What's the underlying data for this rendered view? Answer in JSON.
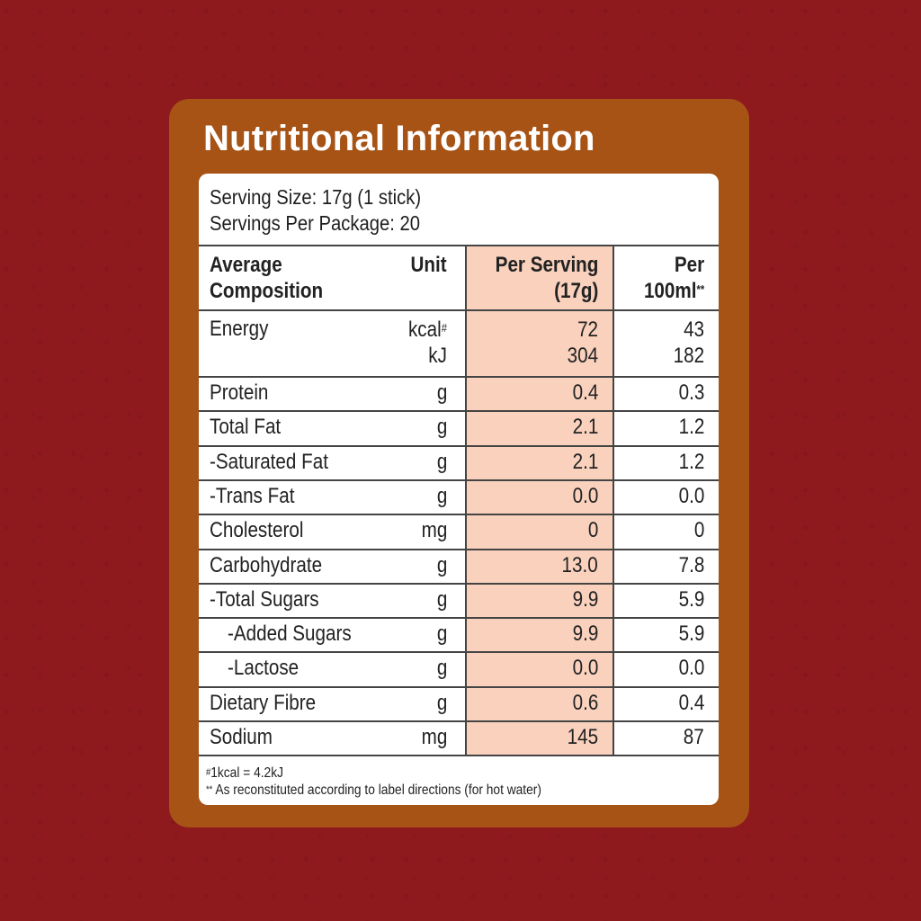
{
  "title": "Nutritional Information",
  "serving_size": "Serving Size: 17g (1 stick)",
  "servings_per_package": "Servings Per Package: 20",
  "header": {
    "composition_line1": "Average",
    "composition_line2": "Composition",
    "unit": "Unit",
    "per_serving_line1": "Per Serving",
    "per_serving_line2": "(17g)",
    "per100_line1": "Per",
    "per100_line2": "100ml",
    "per100_mark": "**"
  },
  "energy": {
    "name": "Energy",
    "unit_kcal": "kcal",
    "unit_kcal_mark": "#",
    "unit_kj": "kJ",
    "ps_kcal": "72",
    "ps_kj": "304",
    "p100_kcal": "43",
    "p100_kj": "182"
  },
  "rows": [
    {
      "name": "Protein",
      "unit": "g",
      "per_serving": "0.4",
      "per_100ml": "0.3"
    },
    {
      "name": "Total Fat",
      "unit": "g",
      "per_serving": "2.1",
      "per_100ml": "1.2"
    },
    {
      "name": "-Saturated Fat",
      "unit": "g",
      "per_serving": "2.1",
      "per_100ml": "1.2"
    },
    {
      "name": "-Trans Fat",
      "unit": "g",
      "per_serving": "0.0",
      "per_100ml": "0.0"
    },
    {
      "name": "Cholesterol",
      "unit": "mg",
      "per_serving": "0",
      "per_100ml": "0"
    },
    {
      "name": "Carbohydrate",
      "unit": "g",
      "per_serving": "13.0",
      "per_100ml": "7.8"
    },
    {
      "name": "-Total Sugars",
      "unit": "g",
      "per_serving": "9.9",
      "per_100ml": "5.9"
    },
    {
      "name": "-Added Sugars",
      "unit": "g",
      "per_serving": "9.9",
      "per_100ml": "5.9"
    },
    {
      "name": "-Lactose",
      "unit": "g",
      "per_serving": "0.0",
      "per_100ml": "0.0"
    },
    {
      "name": "Dietary Fibre",
      "unit": "g",
      "per_serving": "0.6",
      "per_100ml": "0.4"
    },
    {
      "name": "Sodium",
      "unit": "mg",
      "per_serving": "145",
      "per_100ml": "87"
    }
  ],
  "footnote1_mark": "#",
  "footnote1": "1kcal = 4.2kJ",
  "footnote2_mark": "**",
  "footnote2": "As reconstituted according to label directions (for hot water)",
  "colors": {
    "background": "#8e1a1d",
    "card": "#a65315",
    "highlight_column": "#f9d1bd"
  }
}
